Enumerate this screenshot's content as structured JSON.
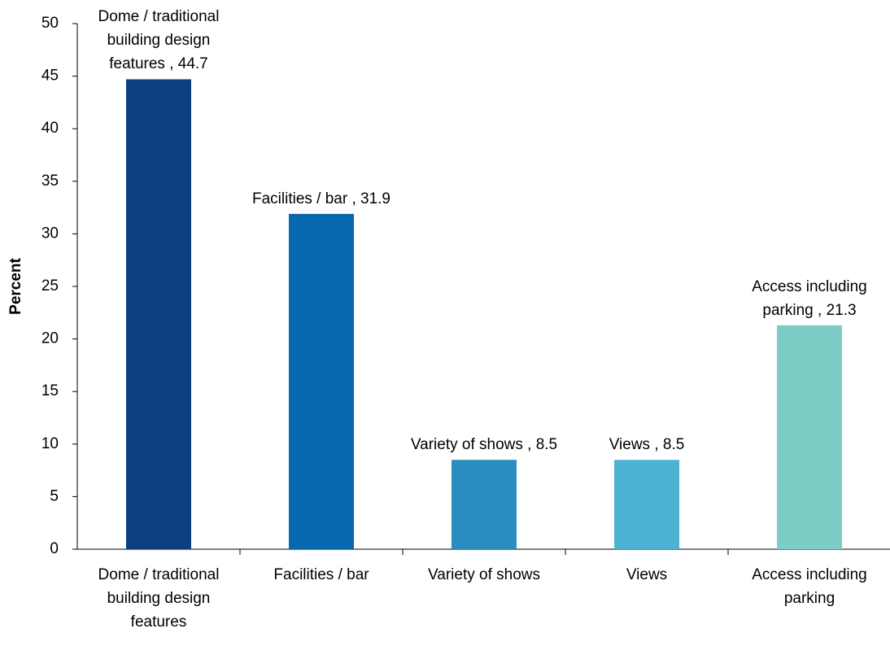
{
  "chart_data": {
    "type": "bar",
    "y_label": "Percent",
    "categories": [
      "Dome / traditional building design features",
      "Facilities / bar",
      "Variety of shows",
      "Views",
      "Access including parking"
    ],
    "values": [
      44.7,
      31.9,
      8.5,
      8.5,
      21.3
    ],
    "value_labels": [
      "Dome / traditional building design features , 44.7",
      "Facilities / bar , 31.9",
      "Variety of shows , 8.5",
      "Views , 8.5",
      "Access including parking , 21.3"
    ],
    "colors": [
      "#0b3f7e",
      "#0868ad",
      "#2b8cbf",
      "#4eb2d3",
      "#7ccdc4"
    ],
    "ylim": [
      0,
      50
    ],
    "yticks": [
      0,
      5,
      10,
      15,
      20,
      25,
      30,
      35,
      40,
      45,
      50
    ],
    "grid": false
  }
}
